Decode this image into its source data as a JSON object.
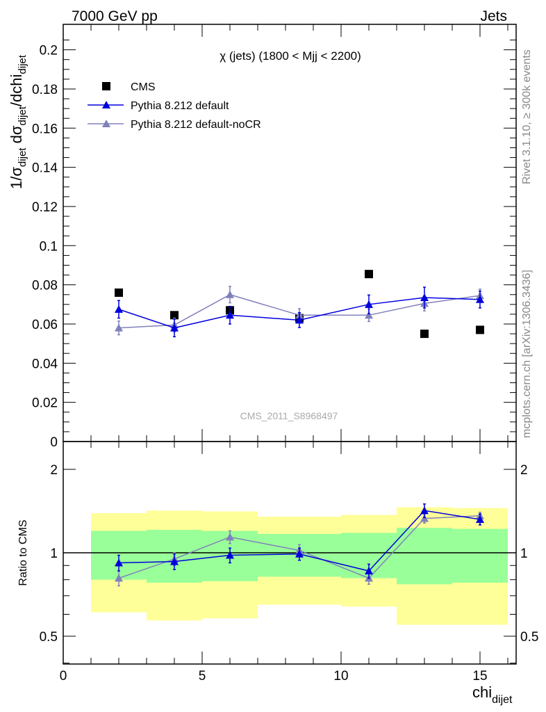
{
  "header": {
    "left": "7000 GeV pp",
    "right": "Jets"
  },
  "side": {
    "rivet": "Rivet 3.1.10, ≥ 300k events",
    "mcplots": "mcplots.cern.ch [arXiv:1306.3436]"
  },
  "watermark": "CMS_2011_S8968497",
  "colors": {
    "cms": "#000000",
    "default": "#0000dd",
    "nocr": "#8080bb",
    "band_outer": "#ffff99",
    "band_inner": "#99ff99"
  },
  "chart_data": [
    {
      "type": "scatter",
      "title": "χ (jets) (1800 < Mjj < 2200)",
      "ylabel_parts": [
        "1/σ",
        "dijet",
        " dσ",
        "dijet",
        "/dchi",
        "dijet"
      ],
      "xlim": [
        0,
        16.3
      ],
      "ylim": [
        0,
        0.213
      ],
      "yticks": [
        0,
        0.02,
        0.04,
        0.06,
        0.08,
        0.1,
        0.12,
        0.14,
        0.16,
        0.18,
        0.2
      ],
      "ytick_labels": [
        "0",
        "0.02",
        "0.04",
        "0.06",
        "0.08",
        "0.1",
        "0.12",
        "0.14",
        "0.16",
        "0.18",
        "0.2"
      ],
      "legend": {
        "placement": "top-left"
      },
      "x": [
        2,
        4,
        6,
        8.5,
        11,
        13,
        15
      ],
      "series": [
        {
          "name": "CMS",
          "marker": "square",
          "values": [
            0.076,
            0.0645,
            0.067,
            0.063,
            0.0855,
            0.055,
            0.057
          ]
        },
        {
          "name": "Pythia 8.212 default",
          "marker": "triangle",
          "values": [
            0.0675,
            0.058,
            0.0645,
            0.062,
            0.07,
            0.0735,
            0.0725
          ],
          "errors": [
            0.0045,
            0.0045,
            0.0045,
            0.0038,
            0.0048,
            0.0053,
            0.0043
          ]
        },
        {
          "name": "Pythia 8.212 default-noCR",
          "marker": "triangle",
          "values": [
            0.058,
            0.0595,
            0.075,
            0.0645,
            0.0645,
            0.0705,
            0.0745
          ],
          "errors": [
            0.0035,
            0.0035,
            0.0042,
            0.0033,
            0.0032,
            0.0038,
            0.0033
          ]
        }
      ]
    },
    {
      "type": "line",
      "ylabel": "Ratio to CMS",
      "xlabel_parts": [
        "chi",
        "dijet"
      ],
      "yscale": "log",
      "ylim": [
        0.397,
        2.52
      ],
      "ytick_labels": [
        {
          "v": 0.5,
          "t": "0.5"
        },
        {
          "v": 1,
          "t": "1"
        },
        {
          "v": 2,
          "t": "2"
        }
      ],
      "xticks": [
        0,
        5,
        10,
        15
      ],
      "xtick_labels": [
        "0",
        "5",
        "10",
        "15"
      ],
      "band_edges": [
        1,
        3,
        5,
        7,
        10,
        12,
        14,
        16
      ],
      "band_outer": [
        [
          0.61,
          1.39
        ],
        [
          0.57,
          1.42
        ],
        [
          0.58,
          1.41
        ],
        [
          0.65,
          1.35
        ],
        [
          0.64,
          1.37
        ],
        [
          0.55,
          1.46
        ],
        [
          0.55,
          1.45
        ]
      ],
      "band_inner": [
        [
          0.8,
          1.2
        ],
        [
          0.78,
          1.21
        ],
        [
          0.79,
          1.2
        ],
        [
          0.82,
          1.17
        ],
        [
          0.81,
          1.18
        ],
        [
          0.77,
          1.23
        ],
        [
          0.78,
          1.22
        ]
      ],
      "x": [
        2,
        4,
        6,
        8.5,
        11,
        13,
        15
      ],
      "series": [
        {
          "name": "Pythia 8.212 default",
          "values": [
            0.92,
            0.93,
            0.98,
            0.99,
            0.86,
            1.42,
            1.32
          ],
          "errors": [
            0.06,
            0.06,
            0.06,
            0.05,
            0.05,
            0.08,
            0.06
          ]
        },
        {
          "name": "Pythia 8.212 default-noCR",
          "values": [
            0.81,
            0.95,
            1.14,
            1.02,
            0.81,
            1.33,
            1.36
          ],
          "errors": [
            0.05,
            0.05,
            0.06,
            0.05,
            0.04,
            0.05,
            0.04
          ]
        }
      ]
    }
  ]
}
